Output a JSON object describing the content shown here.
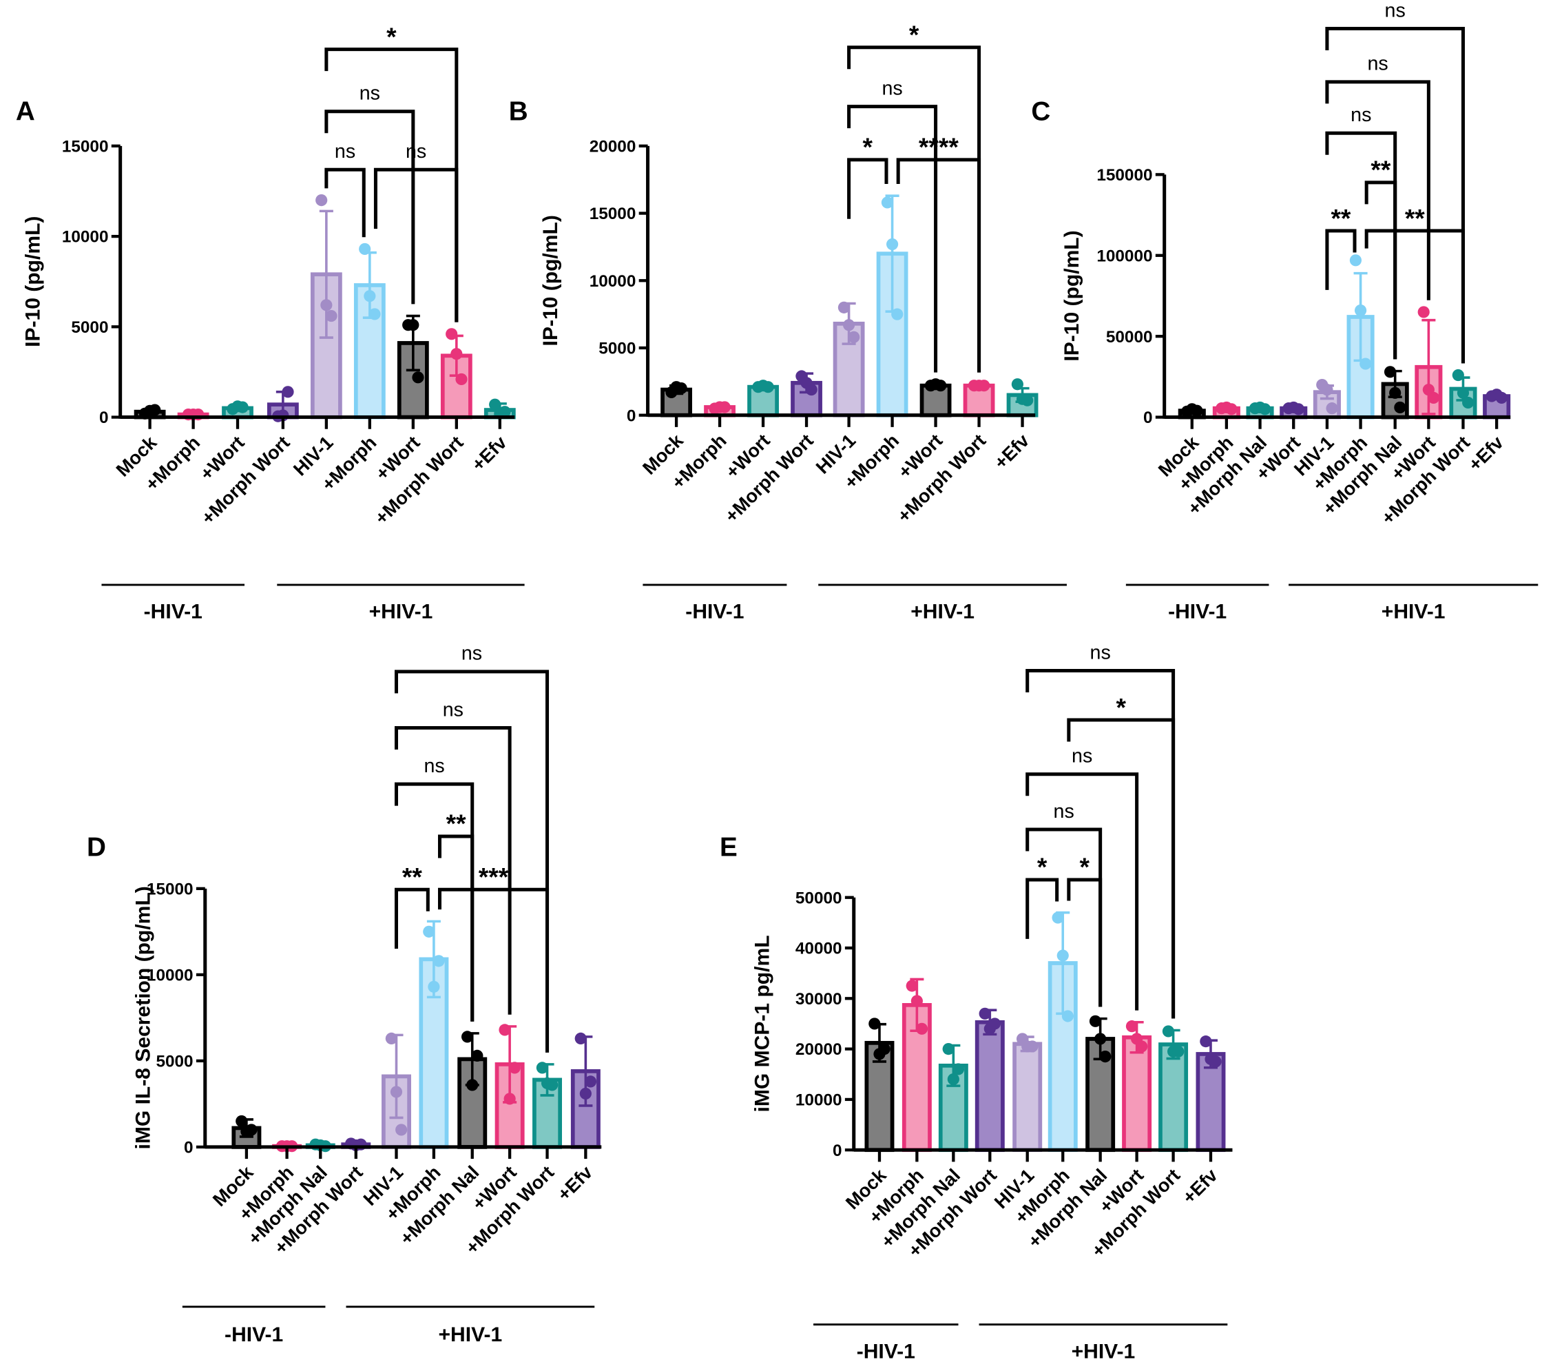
{
  "colors": {
    "black": {
      "fill": "#7f7f7f",
      "stroke": "#000000"
    },
    "pink": {
      "fill": "#f59ab9",
      "stroke": "#e8347a"
    },
    "teal": {
      "fill": "#7fc8c3",
      "stroke": "#0f908a"
    },
    "darkpurple": {
      "fill": "#9f88c6",
      "stroke": "#55308f"
    },
    "lightpurple": {
      "fill": "#cfc2e1",
      "stroke": "#a28cc6"
    },
    "lightblue": {
      "fill": "#c0e7fa",
      "stroke": "#7fd0f5"
    }
  },
  "chart_data": [
    {
      "panel": "A",
      "type": "bar",
      "ylabel": "IP-10 (pg/mL)",
      "ylim": [
        0,
        15000
      ],
      "yticks": [
        "0",
        "5000",
        "10000",
        "15000"
      ],
      "ytick_values": [
        0,
        5000,
        10000,
        15000
      ],
      "categories": [
        "Mock",
        "+Morph",
        "+Wort",
        "+Morph Wort",
        "HIV-1",
        "+Morph",
        "+Wort",
        "+Morph Wort",
        "+Efv"
      ],
      "colors": [
        "black",
        "pink",
        "teal",
        "darkpurple",
        "lightpurple",
        "lightblue",
        "black",
        "pink",
        "teal"
      ],
      "values": [
        300,
        150,
        500,
        700,
        7900,
        7300,
        4100,
        3400,
        400
      ],
      "sd": [
        150,
        0,
        100,
        700,
        3500,
        1800,
        1500,
        1100,
        350
      ],
      "points": [
        [
          200,
          350,
          400
        ],
        [
          150,
          150,
          150
        ],
        [
          450,
          600,
          550
        ],
        [
          50,
          100,
          1400
        ],
        [
          12000,
          6200,
          5600
        ],
        [
          9300,
          6700,
          5700
        ],
        [
          5100,
          5100,
          2200
        ],
        [
          4600,
          3500,
          2100
        ],
        [
          700,
          200,
          300
        ]
      ],
      "groups": [
        {
          "label": "-HIV-1",
          "from": 0,
          "to": 3
        },
        {
          "label": "+HIV-1",
          "from": 4,
          "to": 8
        }
      ],
      "comparisons": [
        {
          "a": 4,
          "b": 5,
          "label": "ns"
        },
        {
          "a": 5,
          "b": 7,
          "label": "ns"
        },
        {
          "a": 4,
          "b": 6,
          "label": "ns"
        },
        {
          "a": 4,
          "b": 7,
          "label": "*"
        }
      ]
    },
    {
      "panel": "B",
      "type": "bar",
      "ylabel": "IP-10 (pg/mL)",
      "ylim": [
        0,
        20000
      ],
      "yticks": [
        "0",
        "5000",
        "10000",
        "15000",
        "20000"
      ],
      "ytick_values": [
        0,
        5000,
        10000,
        15000,
        20000
      ],
      "categories": [
        "Mock",
        "+Morph",
        "+Wort",
        "+Morph Wort",
        "HIV-1",
        "+Morph",
        "+Wort",
        "+Morph Wort",
        "+Efv"
      ],
      "colors": [
        "black",
        "pink",
        "teal",
        "darkpurple",
        "lightpurple",
        "lightblue",
        "black",
        "pink",
        "teal"
      ],
      "values": [
        1900,
        600,
        2100,
        2400,
        6800,
        12000,
        2200,
        2200,
        1500
      ],
      "sd": [
        300,
        100,
        100,
        700,
        1500,
        4300,
        100,
        100,
        500
      ],
      "points": [
        [
          1700,
          2100,
          2000
        ],
        [
          500,
          600,
          600
        ],
        [
          2100,
          2200,
          2100
        ],
        [
          2900,
          2400,
          1900
        ],
        [
          8000,
          6700,
          5800
        ],
        [
          15800,
          12700,
          7500
        ],
        [
          2200,
          2300,
          2200
        ],
        [
          2200,
          2200,
          2200
        ],
        [
          2300,
          1200,
          1100
        ]
      ],
      "groups": [
        {
          "label": "-HIV-1",
          "from": 0,
          "to": 3
        },
        {
          "label": "+HIV-1",
          "from": 4,
          "to": 8
        }
      ],
      "comparisons": [
        {
          "a": 4,
          "b": 5,
          "label": "*"
        },
        {
          "a": 5,
          "b": 7,
          "label": "****"
        },
        {
          "a": 4,
          "b": 6,
          "label": "ns"
        },
        {
          "a": 4,
          "b": 7,
          "label": "*"
        }
      ]
    },
    {
      "panel": "C",
      "type": "bar",
      "ylabel": "IP-10 (pg/mL)",
      "ylim": [
        0,
        150000
      ],
      "yticks": [
        "0",
        "50000",
        "100000",
        "150000"
      ],
      "ytick_values": [
        0,
        50000,
        100000,
        150000
      ],
      "categories": [
        "Mock",
        "+Morph",
        "+Morph Nal",
        "+Wort",
        "HIV-1",
        "+Morph",
        "+Morph Nal",
        "+Wort",
        "+Morph Wort",
        "+Efv"
      ],
      "colors": [
        "black",
        "pink",
        "teal",
        "darkpurple",
        "lightpurple",
        "lightblue",
        "black",
        "pink",
        "teal",
        "darkpurple"
      ],
      "values": [
        4000,
        5500,
        5500,
        5500,
        15500,
        62000,
        20500,
        31000,
        17500,
        13000
      ],
      "sd": [
        1000,
        500,
        500,
        500,
        4000,
        27000,
        8000,
        29000,
        7000,
        1000
      ],
      "points": [
        [
          3500,
          5000,
          4000
        ],
        [
          5500,
          6000,
          5000
        ],
        [
          5500,
          6000,
          5000
        ],
        [
          5500,
          6000,
          5000
        ],
        [
          20000,
          17000,
          5500
        ],
        [
          97000,
          66000,
          33000
        ],
        [
          28000,
          15000,
          6000
        ],
        [
          65000,
          17000,
          12000
        ],
        [
          26000,
          15000,
          9000
        ],
        [
          13000,
          14000,
          12000
        ]
      ],
      "groups": [
        {
          "label": "-HIV-1",
          "from": 0,
          "to": 3
        },
        {
          "label": "+HIV-1",
          "from": 4,
          "to": 9
        }
      ],
      "comparisons": [
        {
          "a": 4,
          "b": 5,
          "label": "**"
        },
        {
          "a": 5,
          "b": 8,
          "label": "**"
        },
        {
          "a": 5,
          "b": 6,
          "label": "**"
        },
        {
          "a": 4,
          "b": 6,
          "label": "ns"
        },
        {
          "a": 4,
          "b": 7,
          "label": "ns"
        },
        {
          "a": 4,
          "b": 8,
          "label": "ns"
        }
      ]
    },
    {
      "panel": "D",
      "type": "bar",
      "ylabel": "iMG IL-8 Secretion (pg/mL)",
      "ylim": [
        0,
        15000
      ],
      "yticks": [
        "0",
        "5000",
        "10000",
        "15000"
      ],
      "ytick_values": [
        0,
        5000,
        10000,
        15000
      ],
      "categories": [
        "Mock",
        "+Morph",
        "+Morph Nal",
        "+Morph Wort",
        "HIV-1",
        "+Morph",
        "+Morph Nal",
        "+Wort",
        "+Morph Wort",
        "+Efv"
      ],
      "colors": [
        "black",
        "pink",
        "teal",
        "darkpurple",
        "lightpurple",
        "lightblue",
        "black",
        "pink",
        "teal",
        "darkpurple"
      ],
      "values": [
        1100,
        50,
        100,
        150,
        4100,
        10900,
        5100,
        4800,
        3900,
        4400
      ],
      "sd": [
        500,
        30,
        50,
        80,
        2400,
        2200,
        1500,
        2200,
        900,
        2000
      ],
      "points": [
        [
          1500,
          900,
          1000
        ],
        [
          50,
          50,
          50
        ],
        [
          150,
          100,
          50
        ],
        [
          200,
          100,
          150
        ],
        [
          6300,
          3200,
          1000
        ],
        [
          12500,
          9300,
          10800
        ],
        [
          6400,
          3600,
          5300
        ],
        [
          6800,
          2800,
          4600
        ],
        [
          4600,
          3700,
          3600
        ],
        [
          6300,
          3100,
          3800
        ]
      ],
      "groups": [
        {
          "label": "-HIV-1",
          "from": 0,
          "to": 3
        },
        {
          "label": "+HIV-1",
          "from": 4,
          "to": 9
        }
      ],
      "comparisons": [
        {
          "a": 4,
          "b": 5,
          "label": "**"
        },
        {
          "a": 5,
          "b": 8,
          "label": "***"
        },
        {
          "a": 5,
          "b": 6,
          "label": "**"
        },
        {
          "a": 4,
          "b": 6,
          "label": "ns"
        },
        {
          "a": 4,
          "b": 7,
          "label": "ns"
        },
        {
          "a": 4,
          "b": 8,
          "label": "ns"
        }
      ]
    },
    {
      "panel": "E",
      "type": "bar",
      "ylabel": "iMG MCP-1 pg/mL",
      "ylim": [
        0,
        50000
      ],
      "yticks": [
        "0",
        "10000",
        "20000",
        "30000",
        "40000",
        "50000"
      ],
      "ytick_values": [
        0,
        10000,
        20000,
        30000,
        40000,
        50000
      ],
      "categories": [
        "Mock",
        "+Morph",
        "+Morph Nal",
        "+Morph Wort",
        "HIV-1",
        "+Morph",
        "+Morph Nal",
        "+Wort",
        "+Morph Wort",
        "+Efv"
      ],
      "colors": [
        "black",
        "pink",
        "teal",
        "darkpurple",
        "lightpurple",
        "lightblue",
        "black",
        "pink",
        "teal",
        "darkpurple"
      ],
      "values": [
        21200,
        28700,
        16700,
        25300,
        21000,
        37000,
        22000,
        22300,
        20900,
        19000
      ],
      "sd": [
        3700,
        5100,
        4000,
        2400,
        1400,
        10000,
        4000,
        3000,
        2800,
        2700
      ],
      "points": [
        [
          25000,
          19000,
          20000
        ],
        [
          32500,
          29500,
          24000
        ],
        [
          20000,
          14000,
          16000
        ],
        [
          27000,
          24000,
          25000
        ],
        [
          22000,
          20500,
          20500
        ],
        [
          46000,
          38500,
          26500
        ],
        [
          25500,
          22000,
          18500
        ],
        [
          24500,
          22000,
          20500
        ],
        [
          23500,
          19500,
          19500
        ],
        [
          21500,
          18000,
          17500
        ]
      ],
      "groups": [
        {
          "label": "-HIV-1",
          "from": 0,
          "to": 3
        },
        {
          "label": "+HIV-1",
          "from": 4,
          "to": 9
        }
      ],
      "comparisons": [
        {
          "a": 4,
          "b": 5,
          "label": "*"
        },
        {
          "a": 5,
          "b": 6,
          "label": "*"
        },
        {
          "a": 4,
          "b": 6,
          "label": "ns"
        },
        {
          "a": 4,
          "b": 7,
          "label": "ns"
        },
        {
          "a": 5,
          "b": 8,
          "label": "*"
        },
        {
          "a": 4,
          "b": 8,
          "label": "ns"
        }
      ]
    }
  ]
}
